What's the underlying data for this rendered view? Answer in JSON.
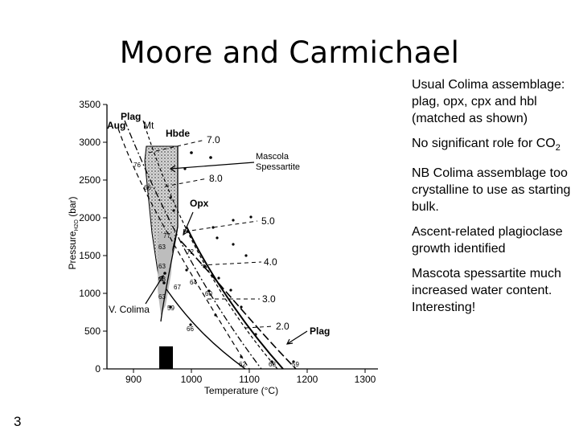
{
  "slide": {
    "title": "Moore and Carmichael",
    "page_number": "3"
  },
  "notes": [
    {
      "text": "Usual Colima assemblage: plag, opx, cpx and hbl (matched as shown)"
    },
    {
      "text": "No significant role for CO",
      "subscript": "2"
    },
    {
      "text": "NB Colima assemblage too crystalline to use as starting bulk."
    },
    {
      "text": "Ascent-related plagioclase  growth identified"
    },
    {
      "text": "Mascota spessartite much increased water content. Interesting!"
    }
  ],
  "diagram": {
    "y_axis": {
      "label": "Pressure",
      "label_sub": "H2O",
      "unit": " (bar)",
      "ticks": [
        "0",
        "500",
        "1000",
        "1500",
        "2000",
        "2500",
        "3000",
        "3500"
      ]
    },
    "x_axis": {
      "label": "Temperature (°C)",
      "ticks": [
        "900",
        "1000",
        "1100",
        "1200",
        "1300"
      ]
    },
    "phase_labels": {
      "plag_top": "Plag",
      "aug": "Aug",
      "mt": "Mt",
      "hbde": "Hbde",
      "opx": "Opx",
      "plag_bottom": "Plag",
      "mascola": "Mascola",
      "spessartite": "Spessartite",
      "v_colima": "V. Colima"
    },
    "isopleths": [
      "7.0",
      "8.0",
      "5.0",
      "4.0",
      "3.0",
      "2.0"
    ],
    "run_numbers": [
      "76",
      "66",
      "77",
      "63",
      "63",
      "72",
      "63",
      "67",
      "64",
      "60",
      "63",
      "59",
      "66",
      "62",
      "68",
      "59"
    ],
    "colors": {
      "ink": "#000000",
      "shade": "#bdbdbd"
    }
  }
}
